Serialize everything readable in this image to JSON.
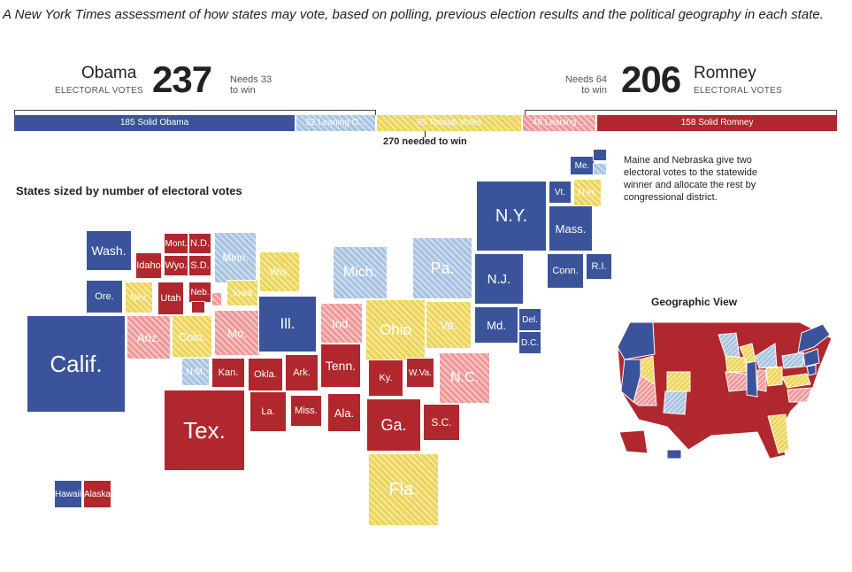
{
  "intro": "A New York Times assessment of how states may vote, based on polling, previous election results and the political geography in each state.",
  "obama": {
    "name": "Obama",
    "sub": "ELECTORAL VOTES",
    "votes": "237",
    "needs_line1": "Needs 33",
    "needs_line2": "to win"
  },
  "romney": {
    "name": "Romney",
    "sub": "ELECTORAL VOTES",
    "votes": "206",
    "needs_line1": "Needs 64",
    "needs_line2": "to win"
  },
  "threshold_label": "270 needed to win",
  "map_title": "States sized by number of electoral votes",
  "note": "Maine and Nebraska give two electoral votes to the statewide winner and allocate the rest by congressional district.",
  "geo_title": "Geographic View",
  "colors": {
    "solid_obama": "#3a539b",
    "leaning_obama": "#a7c2e0",
    "tossup": "#ecd456",
    "leaning_romney": "#ee9797",
    "solid_romney": "#b0282d"
  },
  "chart_data": {
    "type": "bar",
    "orientation": "horizontal-stacked",
    "total": 538,
    "threshold": 270,
    "segments": [
      {
        "name": "Solid Obama",
        "value": 185,
        "label": "185 Solid Obama",
        "color": "#3a539b"
      },
      {
        "name": "Leaning Obama",
        "value": 52,
        "label": "52 Leaning O...",
        "color": "#a7c2e0"
      },
      {
        "name": "Tossup",
        "value": 95,
        "label": "95 Tossup Votes",
        "color": "#ecd456"
      },
      {
        "name": "Leaning Romney",
        "value": 48,
        "label": "48 Leaning ...",
        "color": "#ee9797"
      },
      {
        "name": "Solid Romney",
        "value": 158,
        "label": "158 Solid Romney",
        "color": "#b0282d"
      }
    ]
  },
  "states": [
    {
      "label": "Wash.",
      "cat": "so"
    },
    {
      "label": "Ore.",
      "cat": "so"
    },
    {
      "label": "Calif.",
      "cat": "so"
    },
    {
      "label": "Nev.",
      "cat": "tu"
    },
    {
      "label": "Idaho",
      "cat": "sr"
    },
    {
      "label": "Mont.",
      "cat": "sr"
    },
    {
      "label": "Wyo.",
      "cat": "sr"
    },
    {
      "label": "Utah",
      "cat": "sr"
    },
    {
      "label": "Ariz.",
      "cat": "lr"
    },
    {
      "label": "Colo.",
      "cat": "tu"
    },
    {
      "label": "N.M.",
      "cat": "lo"
    },
    {
      "label": "N.D.",
      "cat": "sr"
    },
    {
      "label": "S.D.",
      "cat": "sr"
    },
    {
      "label": "Neb.",
      "cat": "sr"
    },
    {
      "label": "",
      "cat": "sr"
    },
    {
      "label": "",
      "cat": "lr"
    },
    {
      "label": "Kan.",
      "cat": "sr"
    },
    {
      "label": "Okla.",
      "cat": "sr"
    },
    {
      "label": "Tex.",
      "cat": "sr"
    },
    {
      "label": "Minn.",
      "cat": "lo"
    },
    {
      "label": "Iowa",
      "cat": "tu"
    },
    {
      "label": "Mo.",
      "cat": "lr"
    },
    {
      "label": "Ark.",
      "cat": "sr"
    },
    {
      "label": "La.",
      "cat": "sr"
    },
    {
      "label": "Wis.",
      "cat": "tu"
    },
    {
      "label": "Ill.",
      "cat": "so"
    },
    {
      "label": "Miss.",
      "cat": "sr"
    },
    {
      "label": "Mich.",
      "cat": "lo"
    },
    {
      "label": "Ind.",
      "cat": "lr"
    },
    {
      "label": "Tenn.",
      "cat": "sr"
    },
    {
      "label": "Ala.",
      "cat": "sr"
    },
    {
      "label": "Ohio",
      "cat": "tu"
    },
    {
      "label": "Ky.",
      "cat": "sr"
    },
    {
      "label": "W.Va.",
      "cat": "sr"
    },
    {
      "label": "Ga.",
      "cat": "sr"
    },
    {
      "label": "Fla.",
      "cat": "tu"
    },
    {
      "label": "S.C.",
      "cat": "sr"
    },
    {
      "label": "Pa.",
      "cat": "lo"
    },
    {
      "label": "Va.",
      "cat": "tu"
    },
    {
      "label": "N.C.",
      "cat": "lr"
    },
    {
      "label": "N.Y.",
      "cat": "so"
    },
    {
      "label": "N.J.",
      "cat": "so"
    },
    {
      "label": "Md.",
      "cat": "so"
    },
    {
      "label": "Del.",
      "cat": "so"
    },
    {
      "label": "D.C.",
      "cat": "so"
    },
    {
      "label": "Vt.",
      "cat": "so"
    },
    {
      "label": "N.H.",
      "cat": "tu"
    },
    {
      "label": "Me.",
      "cat": "so"
    },
    {
      "label": "",
      "cat": "so"
    },
    {
      "label": "",
      "cat": "lo"
    },
    {
      "label": "Mass.",
      "cat": "so"
    },
    {
      "label": "Conn.",
      "cat": "so"
    },
    {
      "label": "R.I.",
      "cat": "so"
    },
    {
      "label": "Hawaii",
      "cat": "so"
    },
    {
      "label": "Alaska",
      "cat": "sr"
    }
  ]
}
